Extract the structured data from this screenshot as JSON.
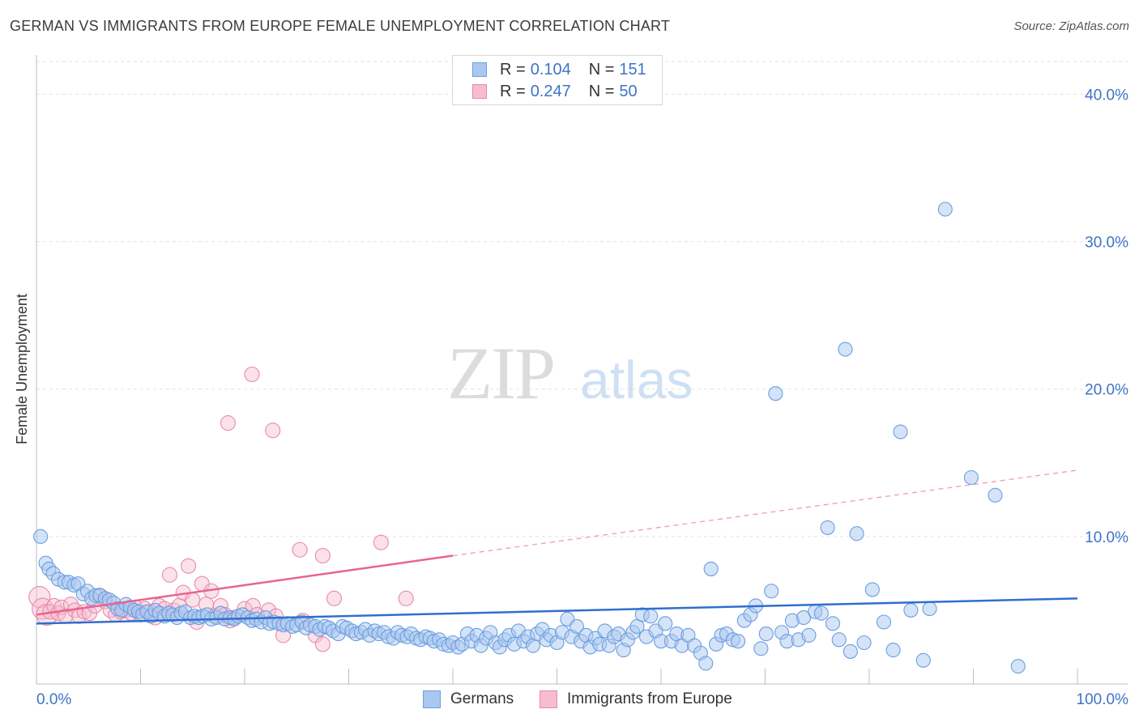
{
  "title": "GERMAN VS IMMIGRANTS FROM EUROPE FEMALE UNEMPLOYMENT CORRELATION CHART",
  "source": "Source: ZipAtlas.com",
  "watermark": {
    "zip": "ZIP",
    "atlas": "atlas"
  },
  "legend": [
    {
      "r_label": "R = ",
      "r_value": "0.104",
      "n_label": "N = ",
      "n_value": "151",
      "color": "#a9c8f0",
      "border": "#6b9ee0"
    },
    {
      "r_label": "R = ",
      "r_value": "0.247",
      "n_label": "N = ",
      "n_value": "50",
      "color": "#f7bcd0",
      "border": "#e88aa8"
    }
  ],
  "bottom_legend": [
    {
      "label": "Germans",
      "color": "#a9c8f0",
      "border": "#6b9ee0"
    },
    {
      "label": "Immigrants from Europe",
      "color": "#f7bcd0",
      "border": "#e88aa8"
    }
  ],
  "colors": {
    "blue_line": "#2f6fcf",
    "pink_line": "#e8648e",
    "tick_label": "#3d74c6"
  },
  "chart_data": {
    "type": "scatter",
    "title": "GERMAN VS IMMIGRANTS FROM EUROPE FEMALE UNEMPLOYMENT CORRELATION CHART",
    "xlabel": "",
    "ylabel": "Female Unemployment",
    "xlim": [
      0,
      100
    ],
    "ylim": [
      0,
      42
    ],
    "x_tick_labels": [
      "0.0%",
      "100.0%"
    ],
    "y_ticks": [
      10,
      20,
      30,
      40
    ],
    "y_tick_labels": [
      "10.0%",
      "20.0%",
      "30.0%",
      "40.0%"
    ],
    "grid": true,
    "legend_position": "top-center",
    "series": [
      {
        "name": "Germans",
        "r": 0.104,
        "n": 151,
        "trend": {
          "x": [
            0,
            100
          ],
          "y": [
            4.1,
            5.8
          ]
        },
        "points": [
          [
            0.4,
            10.0
          ],
          [
            0.9,
            8.2
          ],
          [
            1.2,
            7.8
          ],
          [
            1.6,
            7.5
          ],
          [
            2.1,
            7.1
          ],
          [
            2.7,
            6.9
          ],
          [
            3.1,
            6.9
          ],
          [
            3.6,
            6.7
          ],
          [
            4.0,
            6.8
          ],
          [
            4.5,
            6.1
          ],
          [
            4.9,
            6.3
          ],
          [
            5.3,
            5.8
          ],
          [
            5.7,
            6.0
          ],
          [
            6.1,
            6.0
          ],
          [
            6.6,
            5.8
          ],
          [
            7.0,
            5.7
          ],
          [
            7.4,
            5.5
          ],
          [
            7.8,
            5.1
          ],
          [
            8.2,
            5.0
          ],
          [
            8.6,
            5.4
          ],
          [
            9.0,
            5.2
          ],
          [
            9.4,
            5.0
          ],
          [
            9.8,
            4.9
          ],
          [
            10.2,
            4.7
          ],
          [
            10.6,
            4.9
          ],
          [
            11.0,
            4.6
          ],
          [
            11.4,
            5.0
          ],
          [
            11.8,
            4.8
          ],
          [
            12.3,
            4.6
          ],
          [
            12.7,
            4.8
          ],
          [
            13.1,
            4.7
          ],
          [
            13.5,
            4.5
          ],
          [
            13.9,
            4.8
          ],
          [
            14.3,
            4.9
          ],
          [
            14.8,
            4.5
          ],
          [
            15.2,
            4.6
          ],
          [
            15.6,
            4.5
          ],
          [
            16.0,
            4.6
          ],
          [
            16.4,
            4.7
          ],
          [
            16.8,
            4.4
          ],
          [
            17.3,
            4.5
          ],
          [
            17.7,
            4.8
          ],
          [
            18.1,
            4.4
          ],
          [
            18.6,
            4.5
          ],
          [
            19.0,
            4.4
          ],
          [
            19.4,
            4.6
          ],
          [
            19.8,
            4.7
          ],
          [
            20.3,
            4.5
          ],
          [
            20.7,
            4.3
          ],
          [
            21.1,
            4.4
          ],
          [
            21.6,
            4.2
          ],
          [
            22.0,
            4.5
          ],
          [
            22.4,
            4.1
          ],
          [
            22.8,
            4.2
          ],
          [
            23.3,
            4.1
          ],
          [
            23.7,
            4.0
          ],
          [
            24.1,
            4.1
          ],
          [
            24.6,
            3.9
          ],
          [
            25.0,
            4.0
          ],
          [
            25.5,
            4.2
          ],
          [
            25.9,
            3.8
          ],
          [
            26.3,
            4.0
          ],
          [
            26.8,
            3.9
          ],
          [
            27.2,
            3.7
          ],
          [
            27.7,
            3.9
          ],
          [
            28.1,
            3.8
          ],
          [
            28.5,
            3.6
          ],
          [
            29.0,
            3.4
          ],
          [
            29.4,
            3.9
          ],
          [
            29.8,
            3.8
          ],
          [
            30.3,
            3.6
          ],
          [
            30.7,
            3.4
          ],
          [
            31.2,
            3.5
          ],
          [
            31.6,
            3.7
          ],
          [
            32.0,
            3.3
          ],
          [
            32.5,
            3.6
          ],
          [
            32.9,
            3.4
          ],
          [
            33.4,
            3.5
          ],
          [
            33.8,
            3.2
          ],
          [
            34.3,
            3.1
          ],
          [
            34.7,
            3.5
          ],
          [
            35.1,
            3.3
          ],
          [
            35.6,
            3.2
          ],
          [
            36.0,
            3.4
          ],
          [
            36.5,
            3.1
          ],
          [
            36.9,
            3.0
          ],
          [
            37.4,
            3.2
          ],
          [
            37.8,
            3.1
          ],
          [
            38.2,
            2.9
          ],
          [
            38.7,
            3.0
          ],
          [
            39.1,
            2.7
          ],
          [
            39.6,
            2.6
          ],
          [
            40.0,
            2.8
          ],
          [
            40.5,
            2.5
          ],
          [
            40.9,
            2.7
          ],
          [
            41.4,
            3.4
          ],
          [
            41.8,
            2.9
          ],
          [
            42.3,
            3.3
          ],
          [
            42.7,
            2.6
          ],
          [
            43.2,
            3.1
          ],
          [
            43.6,
            3.5
          ],
          [
            44.1,
            2.8
          ],
          [
            44.5,
            2.5
          ],
          [
            45.0,
            3.0
          ],
          [
            45.4,
            3.3
          ],
          [
            45.9,
            2.7
          ],
          [
            46.3,
            3.6
          ],
          [
            46.8,
            2.9
          ],
          [
            47.2,
            3.2
          ],
          [
            47.7,
            2.6
          ],
          [
            48.1,
            3.4
          ],
          [
            48.6,
            3.7
          ],
          [
            49.0,
            3.0
          ],
          [
            49.4,
            3.3
          ],
          [
            50.0,
            2.8
          ],
          [
            50.5,
            3.5
          ],
          [
            51.0,
            4.4
          ],
          [
            51.4,
            3.2
          ],
          [
            51.9,
            3.9
          ],
          [
            52.3,
            2.9
          ],
          [
            52.8,
            3.3
          ],
          [
            53.2,
            2.5
          ],
          [
            53.7,
            3.1
          ],
          [
            54.1,
            2.7
          ],
          [
            54.6,
            3.6
          ],
          [
            55.0,
            2.6
          ],
          [
            55.5,
            3.2
          ],
          [
            55.9,
            3.4
          ],
          [
            56.4,
            2.3
          ],
          [
            56.8,
            3.0
          ],
          [
            57.3,
            3.5
          ],
          [
            57.7,
            3.9
          ],
          [
            58.2,
            4.7
          ],
          [
            58.6,
            3.2
          ],
          [
            59.0,
            4.6
          ],
          [
            59.5,
            3.6
          ],
          [
            60.0,
            2.9
          ],
          [
            60.4,
            4.1
          ],
          [
            61.0,
            2.9
          ],
          [
            61.5,
            3.4
          ],
          [
            62.0,
            2.6
          ],
          [
            62.6,
            3.3
          ],
          [
            63.2,
            2.6
          ],
          [
            63.8,
            2.1
          ],
          [
            64.3,
            1.4
          ],
          [
            64.8,
            7.8
          ],
          [
            65.3,
            2.7
          ],
          [
            65.8,
            3.3
          ],
          [
            66.3,
            3.4
          ],
          [
            66.9,
            3.0
          ],
          [
            67.4,
            2.9
          ],
          [
            68.0,
            4.3
          ],
          [
            68.6,
            4.7
          ],
          [
            69.1,
            5.3
          ],
          [
            69.6,
            2.4
          ],
          [
            70.1,
            3.4
          ],
          [
            70.6,
            6.3
          ],
          [
            71.0,
            19.7
          ],
          [
            71.6,
            3.5
          ],
          [
            72.1,
            2.9
          ],
          [
            72.6,
            4.3
          ],
          [
            73.2,
            3.0
          ],
          [
            73.7,
            4.5
          ],
          [
            74.2,
            3.3
          ],
          [
            74.8,
            4.9
          ],
          [
            75.4,
            4.8
          ],
          [
            76.0,
            10.6
          ],
          [
            76.5,
            4.1
          ],
          [
            77.1,
            3.0
          ],
          [
            77.7,
            22.7
          ],
          [
            78.2,
            2.2
          ],
          [
            78.8,
            10.2
          ],
          [
            79.5,
            2.8
          ],
          [
            80.3,
            6.4
          ],
          [
            81.4,
            4.2
          ],
          [
            82.3,
            2.3
          ],
          [
            83.0,
            17.1
          ],
          [
            84.0,
            5.0
          ],
          [
            85.2,
            1.6
          ],
          [
            85.8,
            5.1
          ],
          [
            87.3,
            32.2
          ],
          [
            89.8,
            14.0
          ],
          [
            92.1,
            12.8
          ],
          [
            94.3,
            1.2
          ]
        ]
      },
      {
        "name": "Immigrants from Europe",
        "r": 0.247,
        "n": 50,
        "trend": {
          "x": [
            0,
            40
          ],
          "y": [
            4.7,
            8.7
          ]
        },
        "trend_dashed": {
          "x": [
            40,
            100
          ],
          "y": [
            8.7,
            14.5
          ]
        },
        "points": [
          [
            0.3,
            5.9
          ],
          [
            0.6,
            5.1
          ],
          [
            1.0,
            4.7
          ],
          [
            1.3,
            4.9
          ],
          [
            1.7,
            5.3
          ],
          [
            2.1,
            4.8
          ],
          [
            2.4,
            5.2
          ],
          [
            2.8,
            4.6
          ],
          [
            3.3,
            5.4
          ],
          [
            3.7,
            5.0
          ],
          [
            4.1,
            4.6
          ],
          [
            4.6,
            4.9
          ],
          [
            5.1,
            4.8
          ],
          [
            5.6,
            5.3
          ],
          [
            6.1,
            6.0
          ],
          [
            6.6,
            5.6
          ],
          [
            7.1,
            5.0
          ],
          [
            7.6,
            4.7
          ],
          [
            8.1,
            4.9
          ],
          [
            8.6,
            5.0
          ],
          [
            9.1,
            4.8
          ],
          [
            9.5,
            5.2
          ],
          [
            10.0,
            4.7
          ],
          [
            10.4,
            5.1
          ],
          [
            10.9,
            4.9
          ],
          [
            11.4,
            4.5
          ],
          [
            11.8,
            5.3
          ],
          [
            12.3,
            5.1
          ],
          [
            12.8,
            7.4
          ],
          [
            13.2,
            5.0
          ],
          [
            13.7,
            5.3
          ],
          [
            14.1,
            6.2
          ],
          [
            14.6,
            8.0
          ],
          [
            15.0,
            5.7
          ],
          [
            15.4,
            4.2
          ],
          [
            15.9,
            6.8
          ],
          [
            16.3,
            5.4
          ],
          [
            16.8,
            6.3
          ],
          [
            17.2,
            4.6
          ],
          [
            17.7,
            5.3
          ],
          [
            18.1,
            4.7
          ],
          [
            18.6,
            4.3
          ],
          [
            19.0,
            4.5
          ],
          [
            20.0,
            5.1
          ],
          [
            20.8,
            5.3
          ],
          [
            21.2,
            4.7
          ],
          [
            22.3,
            5.0
          ],
          [
            23.0,
            4.6
          ],
          [
            23.7,
            3.3
          ],
          [
            25.6,
            4.3
          ],
          [
            26.8,
            3.3
          ],
          [
            27.5,
            2.7
          ],
          [
            28.6,
            5.8
          ],
          [
            18.4,
            17.7
          ],
          [
            20.7,
            21.0
          ],
          [
            22.7,
            17.2
          ],
          [
            25.3,
            9.1
          ],
          [
            27.5,
            8.7
          ],
          [
            33.1,
            9.6
          ],
          [
            35.5,
            5.8
          ]
        ]
      }
    ]
  }
}
